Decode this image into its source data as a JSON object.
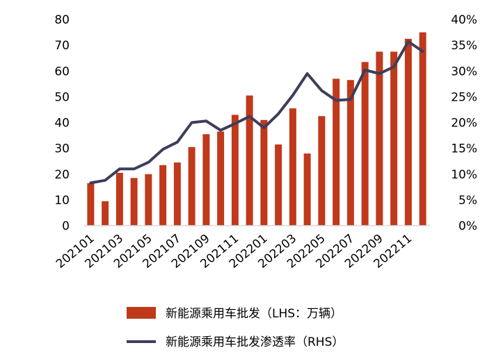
{
  "chart_data": {
    "type": "bar+line",
    "categories": [
      "202101",
      "202102",
      "202103",
      "202104",
      "202105",
      "202106",
      "202107",
      "202108",
      "202109",
      "202110",
      "202111",
      "202112",
      "202201",
      "202202",
      "202203",
      "202204",
      "202205",
      "202206",
      "202207",
      "202208",
      "202209",
      "202210",
      "202211",
      "202212"
    ],
    "x_tick_labels": [
      "202101",
      "202103",
      "202105",
      "202107",
      "202109",
      "202111",
      "202201",
      "202203",
      "202205",
      "202207",
      "202209",
      "202211"
    ],
    "series": [
      {
        "name": "新能源乘用车批发（LHS：万辆）",
        "type": "bar",
        "axis": "left",
        "color": "#c0391b",
        "values": [
          16.5,
          9.5,
          20.5,
          18.5,
          20.0,
          23.5,
          24.5,
          30.5,
          35.5,
          36.5,
          43.0,
          50.5,
          41.0,
          31.5,
          45.5,
          28.0,
          42.5,
          57.0,
          56.5,
          63.5,
          67.5,
          67.5,
          72.5,
          75.0
        ]
      },
      {
        "name": "新能源乘用车批发渗透率（RHS）",
        "type": "line",
        "axis": "right",
        "color": "#3d3d5c",
        "values": [
          8.3,
          8.8,
          11.0,
          11.0,
          12.3,
          14.8,
          16.2,
          20.0,
          20.3,
          18.5,
          19.8,
          21.2,
          19.0,
          21.7,
          25.3,
          29.5,
          26.2,
          24.3,
          24.5,
          30.2,
          29.5,
          30.8,
          35.7,
          33.8
        ]
      }
    ],
    "y_left": {
      "min": 0,
      "max": 80,
      "ticks": [
        "0",
        "10",
        "20",
        "30",
        "40",
        "50",
        "60",
        "70",
        "80"
      ]
    },
    "y_right": {
      "min": 0,
      "max": 40,
      "ticks": [
        "0%",
        "5%",
        "10%",
        "15%",
        "20%",
        "25%",
        "30%",
        "35%",
        "40%"
      ]
    },
    "legend": {
      "placement": "bottom",
      "bar_label": "新能源乘用车批发（LHS：万辆）",
      "line_label": "新能源乘用车批发渗透率（RHS）"
    },
    "grid": false,
    "title": "",
    "xlabel": "",
    "ylabel": ""
  }
}
